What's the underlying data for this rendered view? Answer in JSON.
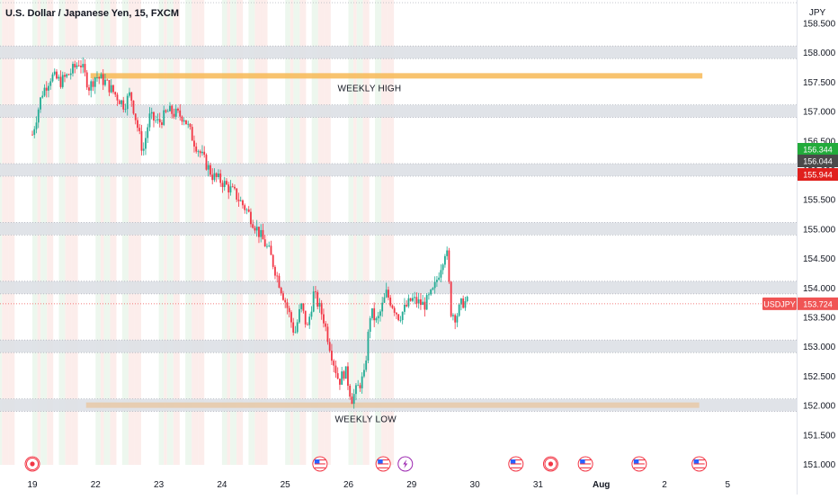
{
  "header": {
    "symbol_title": "U.S. Dollar / Japanese Yen, 15, FXCM",
    "currency_label": "JPY"
  },
  "chart_data": {
    "type": "candlestick",
    "symbol": "USDJPY",
    "timeframe": "15",
    "source": "FXCM",
    "x_tick_labels": [
      "19",
      "22",
      "23",
      "24",
      "25",
      "26",
      "29",
      "30",
      "31",
      "Aug",
      "2",
      "5"
    ],
    "y_tick_labels": [
      "151.000",
      "151.500",
      "152.000",
      "152.500",
      "153.000",
      "153.500",
      "154.000",
      "154.500",
      "155.000",
      "155.500",
      "156.000",
      "156.500",
      "157.000",
      "157.500",
      "158.000",
      "158.500"
    ],
    "ylim": [
      150.9,
      158.7
    ],
    "price_path": [
      [
        0.0,
        156.6
      ],
      [
        0.15,
        157.3
      ],
      [
        0.3,
        157.6
      ],
      [
        0.45,
        157.5
      ],
      [
        0.6,
        157.65
      ],
      [
        0.75,
        157.85
      ],
      [
        0.9,
        157.4
      ],
      [
        1.0,
        157.6
      ],
      [
        1.15,
        157.5
      ],
      [
        1.3,
        157.3
      ],
      [
        1.45,
        157.1
      ],
      [
        1.55,
        157.3
      ],
      [
        1.75,
        156.3
      ],
      [
        1.85,
        156.9
      ],
      [
        2.0,
        156.8
      ],
      [
        2.15,
        157.0
      ],
      [
        2.4,
        156.9
      ],
      [
        2.55,
        156.5
      ],
      [
        2.7,
        156.2
      ],
      [
        2.85,
        155.9
      ],
      [
        3.0,
        155.8
      ],
      [
        3.2,
        155.6
      ],
      [
        3.4,
        155.3
      ],
      [
        3.6,
        154.9
      ],
      [
        3.75,
        154.6
      ],
      [
        3.9,
        154.1
      ],
      [
        4.05,
        153.6
      ],
      [
        4.15,
        153.2
      ],
      [
        4.25,
        153.7
      ],
      [
        4.35,
        153.3
      ],
      [
        4.45,
        153.9
      ],
      [
        4.6,
        153.5
      ],
      [
        4.75,
        152.8
      ],
      [
        4.85,
        152.4
      ],
      [
        4.95,
        152.6
      ],
      [
        5.05,
        152.1
      ],
      [
        5.15,
        152.3
      ],
      [
        5.25,
        152.5
      ],
      [
        5.35,
        153.6
      ],
      [
        5.45,
        153.4
      ],
      [
        5.6,
        153.9
      ],
      [
        5.8,
        153.5
      ],
      [
        6.0,
        153.8
      ],
      [
        6.2,
        153.7
      ],
      [
        6.35,
        153.95
      ],
      [
        6.55,
        154.7
      ],
      [
        6.62,
        153.6
      ],
      [
        6.7,
        153.5
      ],
      [
        6.8,
        153.75
      ],
      [
        6.9,
        153.75
      ]
    ],
    "bands": [
      158.0,
      157.0,
      156.0,
      155.0,
      154.0,
      153.0,
      152.0
    ],
    "annotations": [
      {
        "text": "WEEKLY HIGH",
        "y": 157.6,
        "x_from": 0.92,
        "x_to": 10.6,
        "color": "#f7b955"
      },
      {
        "text": "WEEKLY LOW",
        "y": 152.0,
        "x_from": 0.85,
        "x_to": 10.55,
        "color": "#e8c9a7"
      }
    ],
    "price_labels": [
      {
        "value": "156.344",
        "color": "#22ab3b"
      },
      {
        "value": "156.044",
        "color": "#4a4a4a"
      },
      {
        "value": "155.944",
        "color": "#e0201d"
      }
    ],
    "last_price": {
      "symbol": "USDJPY",
      "value": "153.724",
      "price": 153.724,
      "color": "#f05454"
    },
    "session_shading": true,
    "event_icons": [
      {
        "x": 0.0,
        "type": "red-dot-icon"
      },
      {
        "x": 4.55,
        "type": "us-flag-icon"
      },
      {
        "x": 5.55,
        "type": "us-flag-icon"
      },
      {
        "x": 5.9,
        "type": "lightning-icon"
      },
      {
        "x": 7.65,
        "type": "us-flag-icon"
      },
      {
        "x": 8.2,
        "type": "red-dot-icon"
      },
      {
        "x": 8.75,
        "type": "us-flag-icon"
      },
      {
        "x": 9.6,
        "type": "us-flag-icon"
      },
      {
        "x": 10.55,
        "type": "us-flag-icon"
      }
    ]
  }
}
